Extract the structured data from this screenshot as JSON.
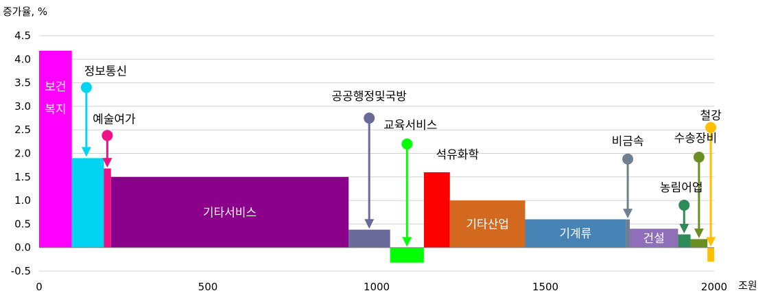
{
  "chart_data": {
    "type": "bar",
    "ylabel": "증가율, %",
    "xlabel": "조원",
    "xlim": [
      0,
      2000
    ],
    "ylim": [
      -0.5,
      4.5
    ],
    "xticks": [
      "0",
      "500",
      "1000",
      "1500",
      "2000"
    ],
    "yticks": [
      "-0.5",
      "0.0",
      "0.5",
      "1.0",
      "1.5",
      "2.0",
      "2.5",
      "3.0",
      "3.5",
      "4.0",
      "4.5"
    ],
    "grid": true,
    "bars": [
      {
        "name": "보건복지",
        "x0": 0,
        "x1": 97,
        "value": 4.18,
        "color": "#ff00ff",
        "label_inside": true,
        "label_lines": [
          "보건",
          "복지"
        ]
      },
      {
        "name": "정보통신",
        "x0": 97,
        "x1": 192,
        "value": 1.9,
        "color": "#00d4f0"
      },
      {
        "name": "예술여가",
        "x0": 192,
        "x1": 213,
        "value": 1.68,
        "color": "#ee1188"
      },
      {
        "name": "기타서비스",
        "x0": 213,
        "x1": 917,
        "value": 1.5,
        "color": "#8b008b",
        "label_inside": true
      },
      {
        "name": "공공행정및국방",
        "x0": 917,
        "x1": 1040,
        "value": 0.38,
        "color": "#6a6a9a"
      },
      {
        "name": "교육서비스",
        "x0": 1040,
        "x1": 1140,
        "value": -0.32,
        "color": "#00ff00"
      },
      {
        "name": "석유화학",
        "x0": 1140,
        "x1": 1217,
        "value": 1.6,
        "color": "#ff0000"
      },
      {
        "name": "기타산업",
        "x0": 1217,
        "x1": 1440,
        "value": 1.0,
        "color": "#d2691e",
        "label_inside": true
      },
      {
        "name": "기계류",
        "x0": 1440,
        "x1": 1738,
        "value": 0.6,
        "color": "#4682b4",
        "label_inside": true
      },
      {
        "name": "비금속",
        "x0": 1738,
        "x1": 1750,
        "value": 0.6,
        "color": "#708090"
      },
      {
        "name": "건설",
        "x0": 1750,
        "x1": 1893,
        "value": 0.4,
        "color": "#8e6fb8",
        "label_inside": true
      },
      {
        "name": "농림어업",
        "x0": 1893,
        "x1": 1930,
        "value": 0.28,
        "color": "#2e8b57"
      },
      {
        "name": "수송장비",
        "x0": 1930,
        "x1": 1980,
        "value": 0.18,
        "color": "#6b8e23"
      },
      {
        "name": "철강",
        "x0": 1980,
        "x1": 2000,
        "value": -0.3,
        "color": "#ffc000"
      }
    ],
    "callouts": [
      {
        "name": "정보통신",
        "dot_x": 140,
        "dot_y": 3.4,
        "tip_y": 1.93,
        "color": "#00d4f0"
      },
      {
        "name": "예술여가",
        "dot_x": 202,
        "dot_y": 2.38,
        "tip_y": 1.7,
        "color": "#ee1188"
      },
      {
        "name": "공공행정및국방",
        "dot_x": 978,
        "dot_y": 2.75,
        "tip_y": 0.4,
        "color": "#6a6a9a"
      },
      {
        "name": "교육서비스",
        "dot_x": 1090,
        "dot_y": 2.2,
        "tip_y": 0.02,
        "color": "#00ff00"
      },
      {
        "name": "석유화학",
        "dot_x": null,
        "dot_y": null,
        "tip_y": null,
        "color": "#ff0000"
      },
      {
        "name": "비금속",
        "dot_x": 1744,
        "dot_y": 1.88,
        "tip_y": 0.62,
        "color": "#708090"
      },
      {
        "name": "농림어업",
        "dot_x": 1911,
        "dot_y": 0.9,
        "tip_y": 0.3,
        "color": "#2e8b57"
      },
      {
        "name": "수송장비",
        "dot_x": 1955,
        "dot_y": 1.92,
        "tip_y": 0.2,
        "color": "#6b8e23"
      },
      {
        "name": "철강",
        "dot_x": 1990,
        "dot_y": 2.55,
        "tip_y": 0.02,
        "color": "#ffc000"
      }
    ]
  }
}
